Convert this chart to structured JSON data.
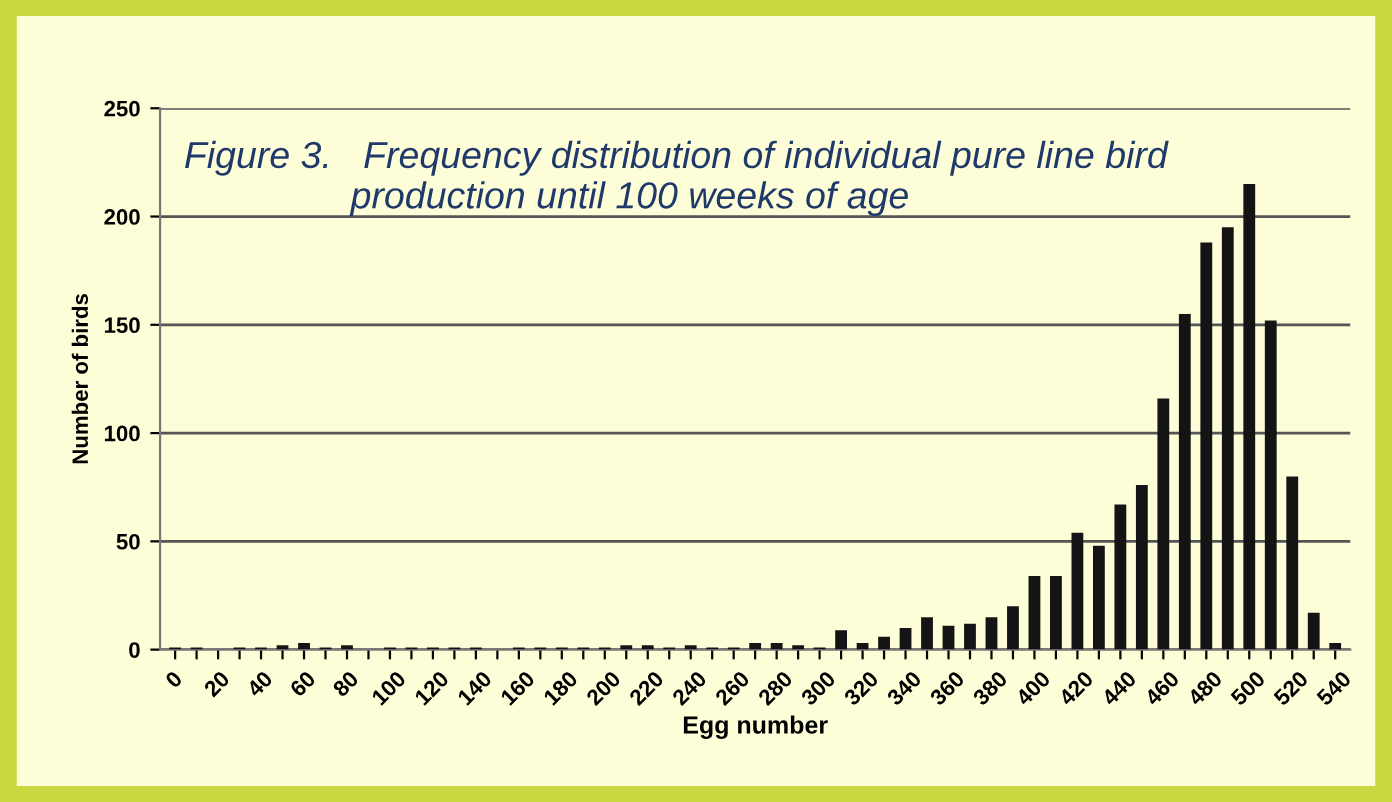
{
  "chart_data": {
    "type": "bar",
    "title": "Figure 3.   Frequency distribution of individual pure line bird\n                production until 100 weeks of age",
    "xlabel": "Egg number",
    "ylabel": "Number of birds",
    "categories": [
      "0",
      null,
      "20",
      null,
      "40",
      null,
      "60",
      null,
      "80",
      null,
      "100",
      null,
      "120",
      null,
      "140",
      null,
      "160",
      null,
      "180",
      null,
      "200",
      null,
      "220",
      null,
      "240",
      null,
      "260",
      null,
      "280",
      null,
      "300",
      null,
      "320",
      null,
      "340",
      null,
      "360",
      null,
      "380",
      null,
      "400",
      null,
      "420",
      null,
      "440",
      null,
      "460",
      null,
      "480",
      null,
      "500",
      null,
      "520",
      null,
      "540"
    ],
    "values": [
      1,
      1,
      0,
      1,
      1,
      2,
      3,
      1,
      2,
      0,
      1,
      1,
      1,
      1,
      1,
      0,
      1,
      1,
      1,
      1,
      1,
      2,
      2,
      1,
      2,
      1,
      1,
      3,
      3,
      2,
      1,
      9,
      3,
      6,
      10,
      15,
      11,
      12,
      15,
      20,
      34,
      34,
      54,
      48,
      67,
      76,
      116,
      155,
      188,
      195,
      215,
      152,
      80,
      17,
      3
    ],
    "color": "#141414",
    "ylim": [
      0,
      250
    ],
    "yticks": [
      0,
      50,
      100,
      150,
      200,
      250
    ],
    "grid": "y"
  }
}
